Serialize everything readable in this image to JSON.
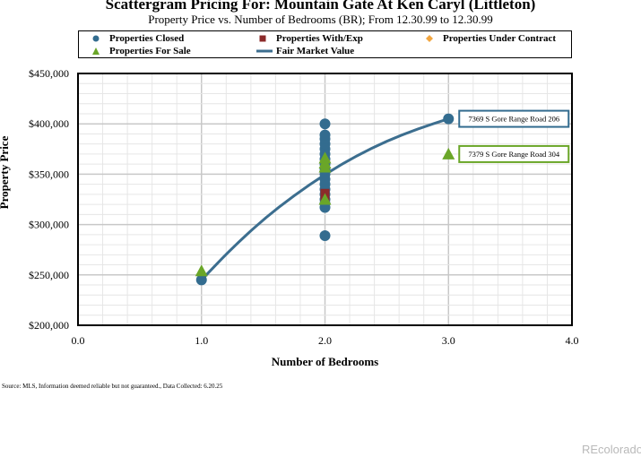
{
  "header": {
    "title": "Scattergram Pricing For: Mountain Gate At Ken Caryl (Littleton)",
    "subtitle": "Property Price vs. Number of Bedrooms (BR); From 12.30.99 to 12.30.99"
  },
  "legend": {
    "items": [
      {
        "label": "Properties Closed",
        "marker": "circle",
        "color": "#336c8f"
      },
      {
        "label": "Properties With/Exp",
        "marker": "square",
        "color": "#8b2a2a"
      },
      {
        "label": "Properties Under Contract",
        "marker": "diamond",
        "color": "#f2a640"
      },
      {
        "label": "Properties For Sale",
        "marker": "triangle",
        "color": "#6aa628"
      },
      {
        "label": "Fair Market Value",
        "marker": "line",
        "color": "#3c6e8f"
      }
    ]
  },
  "chart_data": {
    "type": "scatter",
    "xlabel": "Number of Bedrooms",
    "ylabel": "Property Price",
    "xlim": [
      0,
      4
    ],
    "ylim": [
      200000,
      450000
    ],
    "x_ticks": [
      "0.0",
      "1.0",
      "2.0",
      "3.0",
      "4.0"
    ],
    "y_ticks": [
      "$200,000",
      "$250,000",
      "$300,000",
      "$350,000",
      "$400,000",
      "$450,000"
    ],
    "grid": true,
    "series": [
      {
        "name": "Properties Closed",
        "marker": "circle",
        "color": "#336c8f",
        "points": [
          {
            "x": 1,
            "y": 245000
          },
          {
            "x": 2,
            "y": 289000
          },
          {
            "x": 2,
            "y": 317000
          },
          {
            "x": 2,
            "y": 321000
          },
          {
            "x": 2,
            "y": 325000
          },
          {
            "x": 2,
            "y": 330000
          },
          {
            "x": 2,
            "y": 335000
          },
          {
            "x": 2,
            "y": 340000
          },
          {
            "x": 2,
            "y": 345000
          },
          {
            "x": 2,
            "y": 350000
          },
          {
            "x": 2,
            "y": 355000
          },
          {
            "x": 2,
            "y": 360000
          },
          {
            "x": 2,
            "y": 365000
          },
          {
            "x": 2,
            "y": 370000
          },
          {
            "x": 2,
            "y": 375000
          },
          {
            "x": 2,
            "y": 380000
          },
          {
            "x": 2,
            "y": 385000
          },
          {
            "x": 2,
            "y": 389000
          },
          {
            "x": 2,
            "y": 400000
          },
          {
            "x": 3,
            "y": 405000
          }
        ]
      },
      {
        "name": "Properties With/Exp",
        "marker": "square",
        "color": "#8b2a2a",
        "points": [
          {
            "x": 2,
            "y": 327000
          },
          {
            "x": 2,
            "y": 331000
          }
        ]
      },
      {
        "name": "Properties Under Contract",
        "marker": "diamond",
        "color": "#f2a640",
        "points": [
          {
            "x": 2,
            "y": 363000
          }
        ]
      },
      {
        "name": "Properties For Sale",
        "marker": "triangle",
        "color": "#6aa628",
        "points": [
          {
            "x": 1,
            "y": 254000
          },
          {
            "x": 2,
            "y": 325000
          },
          {
            "x": 2,
            "y": 357000
          },
          {
            "x": 2,
            "y": 361000
          },
          {
            "x": 2,
            "y": 366000
          },
          {
            "x": 3,
            "y": 370000
          }
        ]
      },
      {
        "name": "Fair Market Value",
        "marker": "line",
        "color": "#3c6e8f",
        "points": [
          {
            "x": 1,
            "y": 245000
          },
          {
            "x": 1.25,
            "y": 277000
          },
          {
            "x": 1.5,
            "y": 305000
          },
          {
            "x": 1.75,
            "y": 329000
          },
          {
            "x": 2,
            "y": 350000
          },
          {
            "x": 2.25,
            "y": 368000
          },
          {
            "x": 2.5,
            "y": 383000
          },
          {
            "x": 2.75,
            "y": 395000
          },
          {
            "x": 3,
            "y": 405000
          }
        ]
      }
    ],
    "annotations": [
      {
        "text": "7369 S Gore Range Road 206",
        "x": 3,
        "y": 405000,
        "color": "#336c8f"
      },
      {
        "text": "7379 S Gore Range Road 304",
        "x": 3,
        "y": 370000,
        "color": "#6aa628"
      }
    ]
  },
  "footer": {
    "source": "Source: MLS, Information deemed reliable but not guaranteed., Data Collected: 6.20.25",
    "watermark": "REcolorado"
  }
}
